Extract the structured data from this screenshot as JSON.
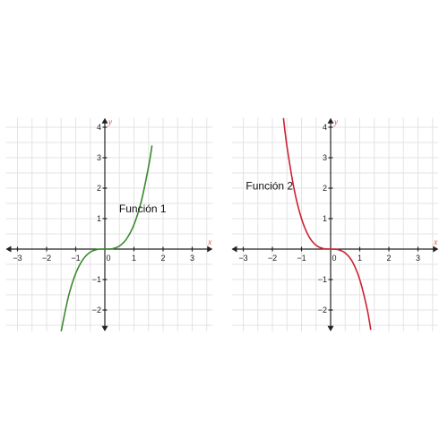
{
  "chart_data": [
    {
      "type": "line",
      "title": "",
      "xlabel": "x",
      "ylabel": "y",
      "xlim": [
        -3.4,
        3.7
      ],
      "ylim": [
        -2.7,
        4.3
      ],
      "xticks": [
        -3,
        -2,
        -1,
        0,
        1,
        2,
        3
      ],
      "yticks": [
        -2,
        -1,
        1,
        2,
        3,
        4
      ],
      "xtick_labels": [
        "−3",
        "−2",
        "−1",
        "0",
        "1",
        "2",
        "3"
      ],
      "ytick_labels": [
        "−2",
        "−1",
        "1",
        "2",
        "3",
        "4"
      ],
      "grid": true,
      "axis_color": "#e04040",
      "series": [
        {
          "name": "Función 1",
          "color": "#3a8a2e",
          "x": [
            -1.5,
            -1.25,
            -1.0,
            -0.75,
            -0.5,
            -0.25,
            0,
            0.25,
            0.5,
            0.75,
            1.0,
            1.25,
            1.5,
            1.62
          ],
          "y": [
            -2.7,
            -1.56,
            -0.8,
            -0.34,
            -0.1,
            -0.01,
            0,
            0.01,
            0.1,
            0.34,
            0.8,
            1.56,
            2.7,
            3.4
          ]
        }
      ],
      "annotations": [
        {
          "text": "Función 1",
          "x": 1.3,
          "y": 1.2
        }
      ]
    },
    {
      "type": "line",
      "title": "",
      "xlabel": "x",
      "ylabel": "y",
      "xlim": [
        -3.4,
        3.7
      ],
      "ylim": [
        -2.7,
        4.3
      ],
      "xticks": [
        -3,
        -2,
        -1,
        0,
        1,
        2,
        3
      ],
      "yticks": [
        -2,
        -1,
        1,
        2,
        3,
        4
      ],
      "xtick_labels": [
        "−3",
        "−2",
        "−1",
        "0",
        "1",
        "2",
        "3"
      ],
      "ytick_labels": [
        "−2",
        "−1",
        "1",
        "2",
        "3",
        "4"
      ],
      "grid": true,
      "axis_color": "#e04040",
      "series": [
        {
          "name": "Función 2",
          "color": "#cc2233",
          "x": [
            -1.62,
            -1.5,
            -1.25,
            -1.0,
            -0.75,
            -0.5,
            -0.25,
            0,
            0.25,
            0.5,
            0.75,
            1.0,
            1.25,
            1.38
          ],
          "y": [
            4.3,
            3.38,
            1.95,
            1.0,
            0.42,
            0.125,
            0.016,
            0,
            -0.016,
            -0.125,
            -0.42,
            -1.0,
            -1.95,
            -2.65
          ]
        }
      ],
      "annotations": [
        {
          "text": "Función 2",
          "x": -2.1,
          "y": 1.95
        }
      ]
    }
  ]
}
